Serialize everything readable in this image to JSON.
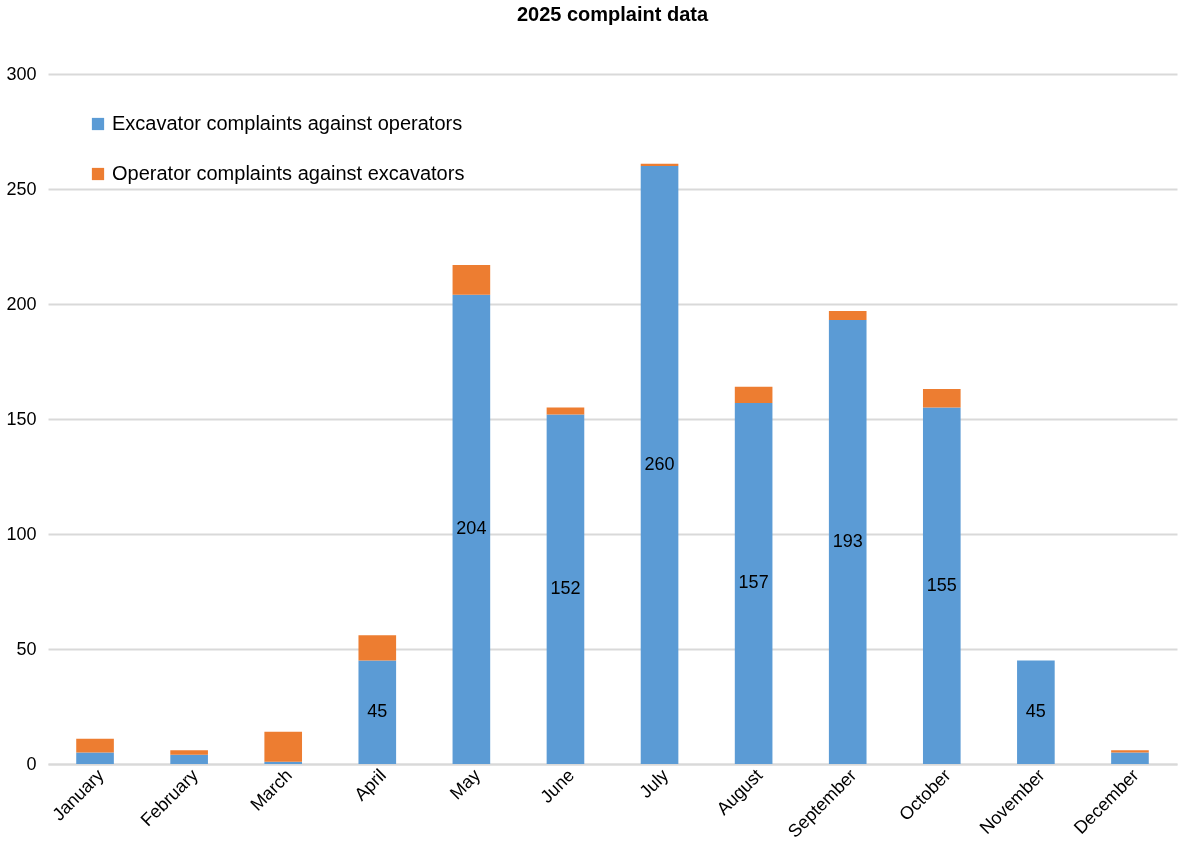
{
  "chart_data": {
    "type": "bar",
    "title": "2025 complaint data",
    "stacked": true,
    "categories": [
      "January",
      "February",
      "March",
      "April",
      "May",
      "June",
      "July",
      "August",
      "September",
      "October",
      "November",
      "December"
    ],
    "series": [
      {
        "name": "Excavator complaints against operators",
        "color": "#5b9bd5",
        "values": [
          5,
          4,
          1,
          45,
          204,
          152,
          260,
          157,
          193,
          155,
          45,
          5
        ],
        "value_labels": [
          null,
          null,
          null,
          "45",
          "204",
          "152",
          "260",
          "157",
          "193",
          "155",
          "45",
          null
        ]
      },
      {
        "name": "Operator complaints against excavators",
        "color": "#ed7d31",
        "values": [
          6,
          2,
          13,
          11,
          13,
          3,
          1,
          7,
          4,
          8,
          0,
          1
        ]
      }
    ],
    "ylim": [
      0,
      300
    ],
    "yticks": [
      0,
      50,
      100,
      150,
      200,
      250,
      300
    ],
    "grid": "y",
    "legend": "top left"
  }
}
